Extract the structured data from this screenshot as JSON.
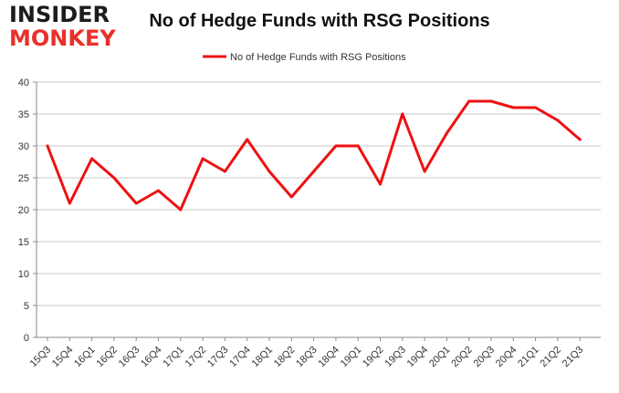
{
  "logo": {
    "top": "INSIDER",
    "bottom": "MONKEY"
  },
  "chart_data": {
    "type": "line",
    "title": "No of Hedge Funds with RSG Positions",
    "xlabel": "",
    "ylabel": "",
    "ylim": [
      0,
      40
    ],
    "yticks": [
      0,
      5,
      10,
      15,
      20,
      25,
      30,
      35,
      40
    ],
    "grid": true,
    "legend_position": "top-center",
    "categories": [
      "15Q3",
      "15Q4",
      "16Q1",
      "16Q2",
      "16Q3",
      "16Q4",
      "17Q1",
      "17Q2",
      "17Q3",
      "17Q4",
      "18Q1",
      "18Q2",
      "18Q3",
      "18Q4",
      "19Q1",
      "19Q2",
      "19Q3",
      "19Q4",
      "20Q1",
      "20Q2",
      "20Q3",
      "20Q4",
      "21Q1",
      "21Q2",
      "21Q3"
    ],
    "series": [
      {
        "name": "No of Hedge Funds with RSG Positions",
        "color": "#ee1111",
        "values": [
          30,
          21,
          28,
          25,
          21,
          23,
          20,
          28,
          26,
          31,
          26,
          22,
          26,
          30,
          30,
          24,
          35,
          26,
          32,
          37,
          37,
          36,
          36,
          34,
          31
        ]
      }
    ]
  }
}
